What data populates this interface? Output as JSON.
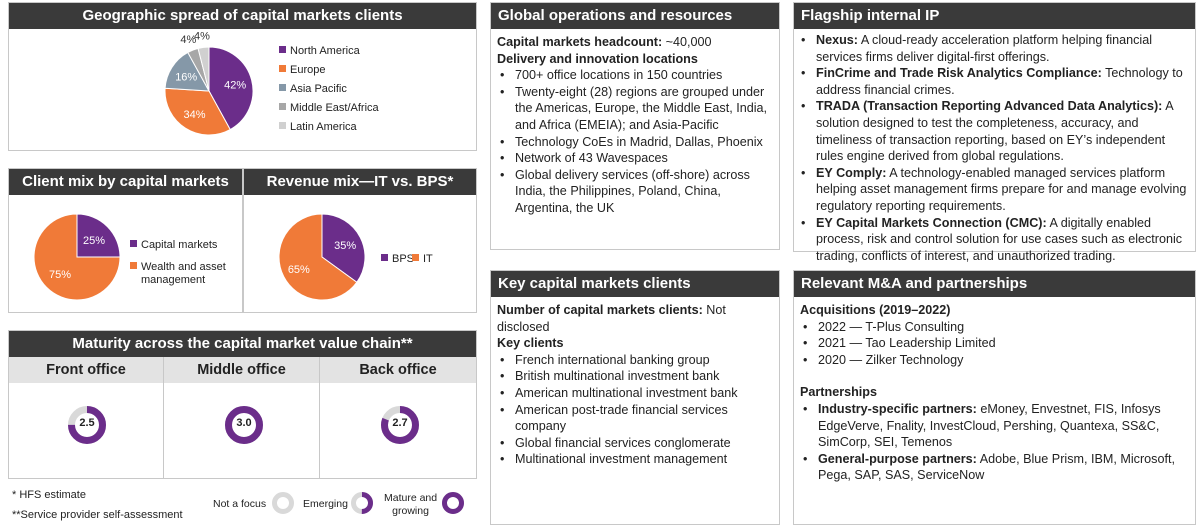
{
  "geo": {
    "title": "Geographic spread of capital markets clients",
    "slices": [
      {
        "label": "North America",
        "value": 42,
        "pct": "42%",
        "color": "#6b2d8a"
      },
      {
        "label": "Europe",
        "value": 34,
        "pct": "34%",
        "color": "#f07a38"
      },
      {
        "label": "Asia Pacific",
        "value": 16,
        "pct": "16%",
        "color": "#8598a8"
      },
      {
        "label": "Middle East/Africa",
        "value": 4,
        "pct": "4%",
        "color": "#a7a7a7"
      },
      {
        "label": "Latin America",
        "value": 4,
        "pct": "4%",
        "color": "#d0d0d0"
      }
    ]
  },
  "client_mix": {
    "title": "Client mix by capital markets",
    "slices": [
      {
        "label": "Capital markets",
        "value": 25,
        "pct": "25%",
        "color": "#6b2d8a"
      },
      {
        "label": "Wealth and asset management",
        "value": 75,
        "pct": "75%",
        "color": "#f07a38"
      }
    ],
    "legend": [
      "Capital markets",
      "Wealth and asset",
      "management"
    ]
  },
  "revenue_mix": {
    "title": "Revenue mix—IT vs. BPS*",
    "slices": [
      {
        "label": "BPS",
        "value": 35,
        "pct": "35%",
        "color": "#6b2d8a"
      },
      {
        "label": "IT",
        "value": 65,
        "pct": "65%",
        "color": "#f07a38"
      }
    ]
  },
  "maturity": {
    "title": "Maturity across the capital market value chain**",
    "columns": [
      {
        "label": "Front office",
        "score": "2.5"
      },
      {
        "label": "Middle office",
        "score": "3.0"
      },
      {
        "label": "Back office",
        "score": "2.7"
      }
    ]
  },
  "footnotes": {
    "hfs": "* HFS estimate",
    "self": "**Service provider self-assessment"
  },
  "maturity_legend": {
    "not_focus": "Not a focus",
    "emerging": "Emerging",
    "mature_line1": "Mature and",
    "mature_line2": "growing"
  },
  "ops": {
    "title": "Global operations and resources",
    "headcount_label": "Capital markets headcount:",
    "headcount_value": "~40,000",
    "locations_label": "Delivery and innovation locations",
    "bullets": [
      "700+ office locations in 150 countries",
      "Twenty-eight (28) regions are grouped under the Americas, Europe, the Middle East, India, and Africa (EMEIA); and Asia-Pacific",
      "Technology CoEs in Madrid, Dallas, Phoenix",
      "Network of 43 Wavespaces",
      "Global delivery services (off-shore) across India, the Philippines, Poland, China, Argentina, the UK"
    ]
  },
  "clients": {
    "title": "Key capital markets clients",
    "count_label": "Number of capital markets clients:",
    "count_value": "Not disclosed",
    "key_label": "Key clients",
    "bullets": [
      "French international banking group",
      "British multinational investment bank",
      "American multinational investment bank",
      "American post-trade financial services company",
      "Global financial services conglomerate",
      "Multinational investment management"
    ]
  },
  "ip": {
    "title": "Flagship internal IP",
    "items": [
      {
        "name": "Nexus:",
        "desc": "A cloud-ready acceleration platform helping financial services firms deliver digital-first offerings."
      },
      {
        "name": "FinCrime and Trade Risk Analytics Compliance:",
        "desc": "Technology to address financial crimes."
      },
      {
        "name": "TRADA (Transaction Reporting Advanced Data Analytics):",
        "desc": "A solution designed to test the completeness, accuracy, and timeliness of transaction reporting, based on EY’s independent rules engine derived from global regulations."
      },
      {
        "name": "EY Comply:",
        "desc": "A technology-enabled managed services platform helping asset management firms prepare for and manage evolving regulatory reporting requirements."
      },
      {
        "name": "EY Capital Markets Connection (CMC):",
        "desc": "A digitally enabled process, risk and control solution for use cases such as electronic trading, conflicts of interest, and unauthorized trading."
      }
    ]
  },
  "ma": {
    "title": "Relevant M&A and partnerships",
    "acq_label": "Acquisitions (2019–2022)",
    "acquisitions": [
      "2022 — T-Plus Consulting",
      "2021 — Tao Leadership Limited",
      "2020 — Zilker Technology"
    ],
    "partnerships_label": "Partnerships",
    "partners": [
      {
        "name": "Industry-specific partners:",
        "desc": "eMoney, Envestnet, FIS, Infosys EdgeVerve, Fnality, InvestCloud, Pershing, Quantexa, SS&C, SimCorp, SEI, Temenos"
      },
      {
        "name": "General-purpose partners:",
        "desc": "Adobe, Blue Prism, IBM, Microsoft, Pega, SAP, SAS, ServiceNow"
      }
    ]
  },
  "colors": {
    "header": "#3a3a3a",
    "purple": "#6b2d8a",
    "orange": "#f07a38",
    "ring_grey": "#d9d9d9"
  }
}
